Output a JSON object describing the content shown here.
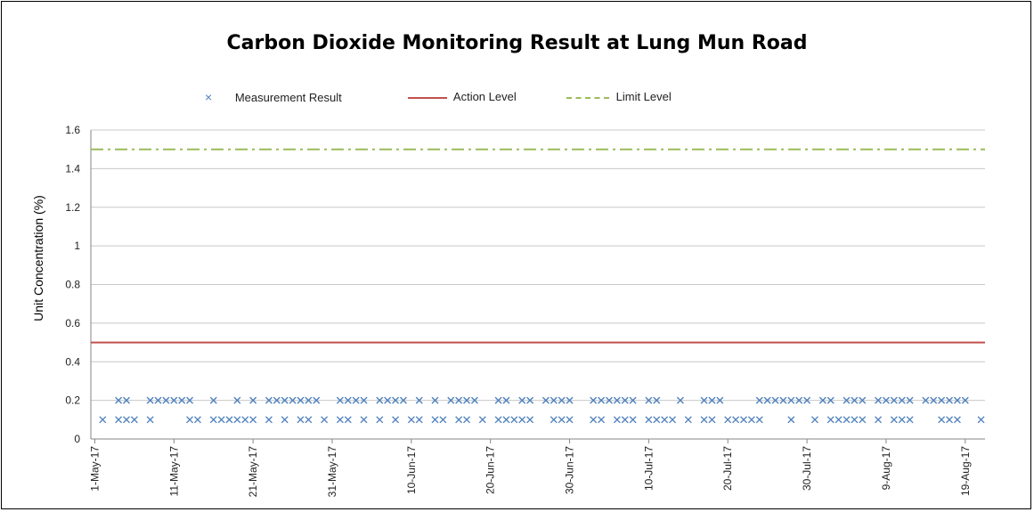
{
  "chart_data": {
    "type": "scatter",
    "title": "Carbon Dioxide Monitoring Result at Lung Mun Road",
    "xlabel": "",
    "ylabel": "Unit Concentration (%)",
    "ylim": [
      0,
      1.6
    ],
    "y_ticks": [
      "0",
      "0.2",
      "0.4",
      "0.6",
      "0.8",
      "1",
      "1.2",
      "1.4",
      "1.6"
    ],
    "x_start": "2017-05-01",
    "x_end": "2017-08-21",
    "x_ticks": [
      "1-May-17",
      "11-May-17",
      "21-May-17",
      "31-May-17",
      "10-Jun-17",
      "20-Jun-17",
      "30-Jun-17",
      "10-Jul-17",
      "20-Jul-17",
      "30-Jul-17",
      "9-Aug-17",
      "19-Aug-17"
    ],
    "x_tick_dates": [
      "2017-05-01",
      "2017-05-11",
      "2017-05-21",
      "2017-05-31",
      "2017-06-10",
      "2017-06-20",
      "2017-06-30",
      "2017-07-10",
      "2017-07-20",
      "2017-07-30",
      "2017-08-09",
      "2017-08-19"
    ],
    "grid": "horizontal",
    "legend_position": "top",
    "series": [
      {
        "name": "Measurement Result",
        "marker": "x",
        "color": "#4f81bd",
        "points": [
          [
            "2017-05-02",
            0.1
          ],
          [
            "2017-05-04",
            0.2
          ],
          [
            "2017-05-04",
            0.1
          ],
          [
            "2017-05-05",
            0.2
          ],
          [
            "2017-05-05",
            0.1
          ],
          [
            "2017-05-06",
            0.1
          ],
          [
            "2017-05-08",
            0.2
          ],
          [
            "2017-05-08",
            0.1
          ],
          [
            "2017-05-09",
            0.2
          ],
          [
            "2017-05-10",
            0.2
          ],
          [
            "2017-05-11",
            0.2
          ],
          [
            "2017-05-12",
            0.2
          ],
          [
            "2017-05-13",
            0.2
          ],
          [
            "2017-05-13",
            0.1
          ],
          [
            "2017-05-14",
            0.1
          ],
          [
            "2017-05-16",
            0.2
          ],
          [
            "2017-05-16",
            0.1
          ],
          [
            "2017-05-17",
            0.1
          ],
          [
            "2017-05-18",
            0.1
          ],
          [
            "2017-05-19",
            0.2
          ],
          [
            "2017-05-19",
            0.1
          ],
          [
            "2017-05-20",
            0.1
          ],
          [
            "2017-05-21",
            0.2
          ],
          [
            "2017-05-21",
            0.1
          ],
          [
            "2017-05-23",
            0.2
          ],
          [
            "2017-05-23",
            0.1
          ],
          [
            "2017-05-24",
            0.2
          ],
          [
            "2017-05-25",
            0.2
          ],
          [
            "2017-05-25",
            0.1
          ],
          [
            "2017-05-26",
            0.2
          ],
          [
            "2017-05-27",
            0.2
          ],
          [
            "2017-05-27",
            0.1
          ],
          [
            "2017-05-28",
            0.2
          ],
          [
            "2017-05-28",
            0.1
          ],
          [
            "2017-05-29",
            0.2
          ],
          [
            "2017-05-30",
            0.1
          ],
          [
            "2017-06-01",
            0.2
          ],
          [
            "2017-06-01",
            0.1
          ],
          [
            "2017-06-02",
            0.2
          ],
          [
            "2017-06-02",
            0.1
          ],
          [
            "2017-06-03",
            0.2
          ],
          [
            "2017-06-04",
            0.2
          ],
          [
            "2017-06-04",
            0.1
          ],
          [
            "2017-06-06",
            0.2
          ],
          [
            "2017-06-06",
            0.1
          ],
          [
            "2017-06-07",
            0.2
          ],
          [
            "2017-06-08",
            0.2
          ],
          [
            "2017-06-08",
            0.1
          ],
          [
            "2017-06-09",
            0.2
          ],
          [
            "2017-06-10",
            0.1
          ],
          [
            "2017-06-11",
            0.2
          ],
          [
            "2017-06-11",
            0.1
          ],
          [
            "2017-06-13",
            0.2
          ],
          [
            "2017-06-13",
            0.1
          ],
          [
            "2017-06-14",
            0.1
          ],
          [
            "2017-06-15",
            0.2
          ],
          [
            "2017-06-16",
            0.2
          ],
          [
            "2017-06-16",
            0.1
          ],
          [
            "2017-06-17",
            0.2
          ],
          [
            "2017-06-17",
            0.1
          ],
          [
            "2017-06-18",
            0.2
          ],
          [
            "2017-06-19",
            0.1
          ],
          [
            "2017-06-21",
            0.2
          ],
          [
            "2017-06-21",
            0.1
          ],
          [
            "2017-06-22",
            0.2
          ],
          [
            "2017-06-22",
            0.1
          ],
          [
            "2017-06-23",
            0.1
          ],
          [
            "2017-06-24",
            0.2
          ],
          [
            "2017-06-24",
            0.1
          ],
          [
            "2017-06-25",
            0.2
          ],
          [
            "2017-06-25",
            0.1
          ],
          [
            "2017-06-27",
            0.2
          ],
          [
            "2017-06-28",
            0.2
          ],
          [
            "2017-06-28",
            0.1
          ],
          [
            "2017-06-29",
            0.2
          ],
          [
            "2017-06-29",
            0.1
          ],
          [
            "2017-06-30",
            0.2
          ],
          [
            "2017-06-30",
            0.1
          ],
          [
            "2017-07-03",
            0.2
          ],
          [
            "2017-07-03",
            0.1
          ],
          [
            "2017-07-04",
            0.2
          ],
          [
            "2017-07-04",
            0.1
          ],
          [
            "2017-07-05",
            0.2
          ],
          [
            "2017-07-06",
            0.2
          ],
          [
            "2017-07-06",
            0.1
          ],
          [
            "2017-07-07",
            0.2
          ],
          [
            "2017-07-07",
            0.1
          ],
          [
            "2017-07-08",
            0.2
          ],
          [
            "2017-07-08",
            0.1
          ],
          [
            "2017-07-10",
            0.2
          ],
          [
            "2017-07-10",
            0.1
          ],
          [
            "2017-07-11",
            0.2
          ],
          [
            "2017-07-11",
            0.1
          ],
          [
            "2017-07-12",
            0.1
          ],
          [
            "2017-07-13",
            0.1
          ],
          [
            "2017-07-14",
            0.2
          ],
          [
            "2017-07-15",
            0.1
          ],
          [
            "2017-07-17",
            0.2
          ],
          [
            "2017-07-17",
            0.1
          ],
          [
            "2017-07-18",
            0.2
          ],
          [
            "2017-07-18",
            0.1
          ],
          [
            "2017-07-19",
            0.2
          ],
          [
            "2017-07-20",
            0.1
          ],
          [
            "2017-07-21",
            0.1
          ],
          [
            "2017-07-22",
            0.1
          ],
          [
            "2017-07-23",
            0.1
          ],
          [
            "2017-07-24",
            0.2
          ],
          [
            "2017-07-24",
            0.1
          ],
          [
            "2017-07-25",
            0.2
          ],
          [
            "2017-07-26",
            0.2
          ],
          [
            "2017-07-27",
            0.2
          ],
          [
            "2017-07-28",
            0.2
          ],
          [
            "2017-07-28",
            0.1
          ],
          [
            "2017-07-29",
            0.2
          ],
          [
            "2017-07-30",
            0.2
          ],
          [
            "2017-07-31",
            0.1
          ],
          [
            "2017-08-01",
            0.2
          ],
          [
            "2017-08-02",
            0.2
          ],
          [
            "2017-08-02",
            0.1
          ],
          [
            "2017-08-03",
            0.1
          ],
          [
            "2017-08-04",
            0.2
          ],
          [
            "2017-08-04",
            0.1
          ],
          [
            "2017-08-05",
            0.2
          ],
          [
            "2017-08-05",
            0.1
          ],
          [
            "2017-08-06",
            0.2
          ],
          [
            "2017-08-06",
            0.1
          ],
          [
            "2017-08-08",
            0.2
          ],
          [
            "2017-08-08",
            0.1
          ],
          [
            "2017-08-09",
            0.2
          ],
          [
            "2017-08-10",
            0.2
          ],
          [
            "2017-08-10",
            0.1
          ],
          [
            "2017-08-11",
            0.2
          ],
          [
            "2017-08-11",
            0.1
          ],
          [
            "2017-08-12",
            0.2
          ],
          [
            "2017-08-12",
            0.1
          ],
          [
            "2017-08-14",
            0.2
          ],
          [
            "2017-08-15",
            0.2
          ],
          [
            "2017-08-16",
            0.2
          ],
          [
            "2017-08-16",
            0.1
          ],
          [
            "2017-08-17",
            0.2
          ],
          [
            "2017-08-17",
            0.1
          ],
          [
            "2017-08-18",
            0.2
          ],
          [
            "2017-08-18",
            0.1
          ],
          [
            "2017-08-19",
            0.2
          ],
          [
            "2017-08-21",
            0.1
          ]
        ]
      },
      {
        "name": "Action Level",
        "style": "solid",
        "color": "#c0504d",
        "value": 0.5
      },
      {
        "name": "Limit Level",
        "style": "dash-dot",
        "color": "#9bbb59",
        "value": 1.5
      }
    ]
  }
}
